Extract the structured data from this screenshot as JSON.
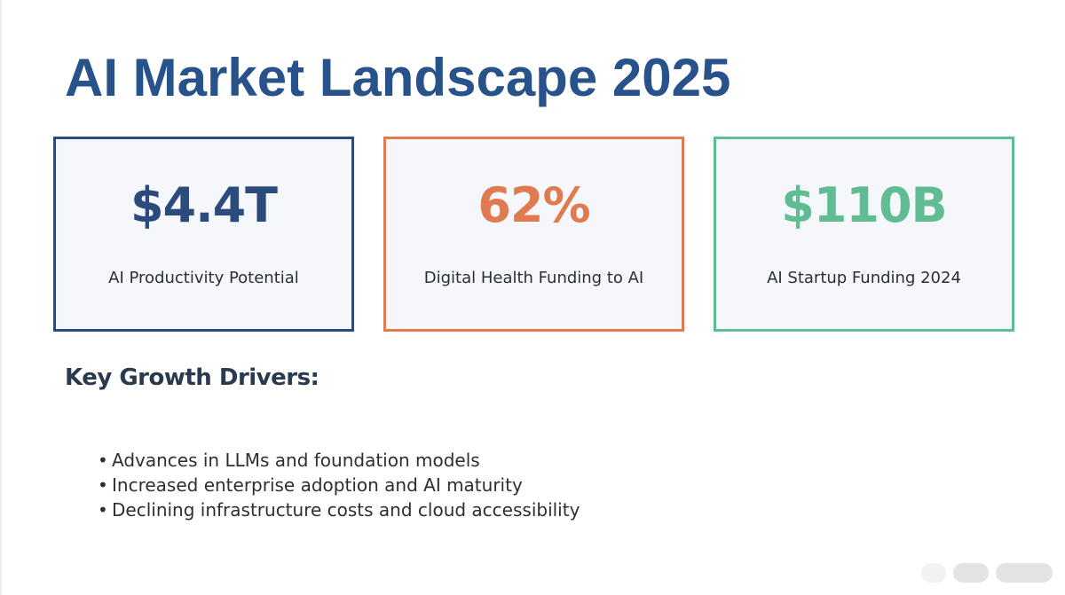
{
  "title": "AI Market Landscape 2025",
  "stats": [
    {
      "value": "$4.4T",
      "label": "AI Productivity Potential",
      "color": "#2b4b7c"
    },
    {
      "value": "62%",
      "label": "Digital Health Funding to AI",
      "color": "#e07a50"
    },
    {
      "value": "$110B",
      "label": "AI Startup Funding 2024",
      "color": "#5fbc93"
    }
  ],
  "drivers": {
    "heading": "Key Growth Drivers:",
    "bullet_symbol": "•",
    "items": [
      "Advances in LLMs and foundation models",
      "Increased enterprise adoption and AI maturity",
      "Declining infrastructure costs and cloud accessibility"
    ]
  }
}
